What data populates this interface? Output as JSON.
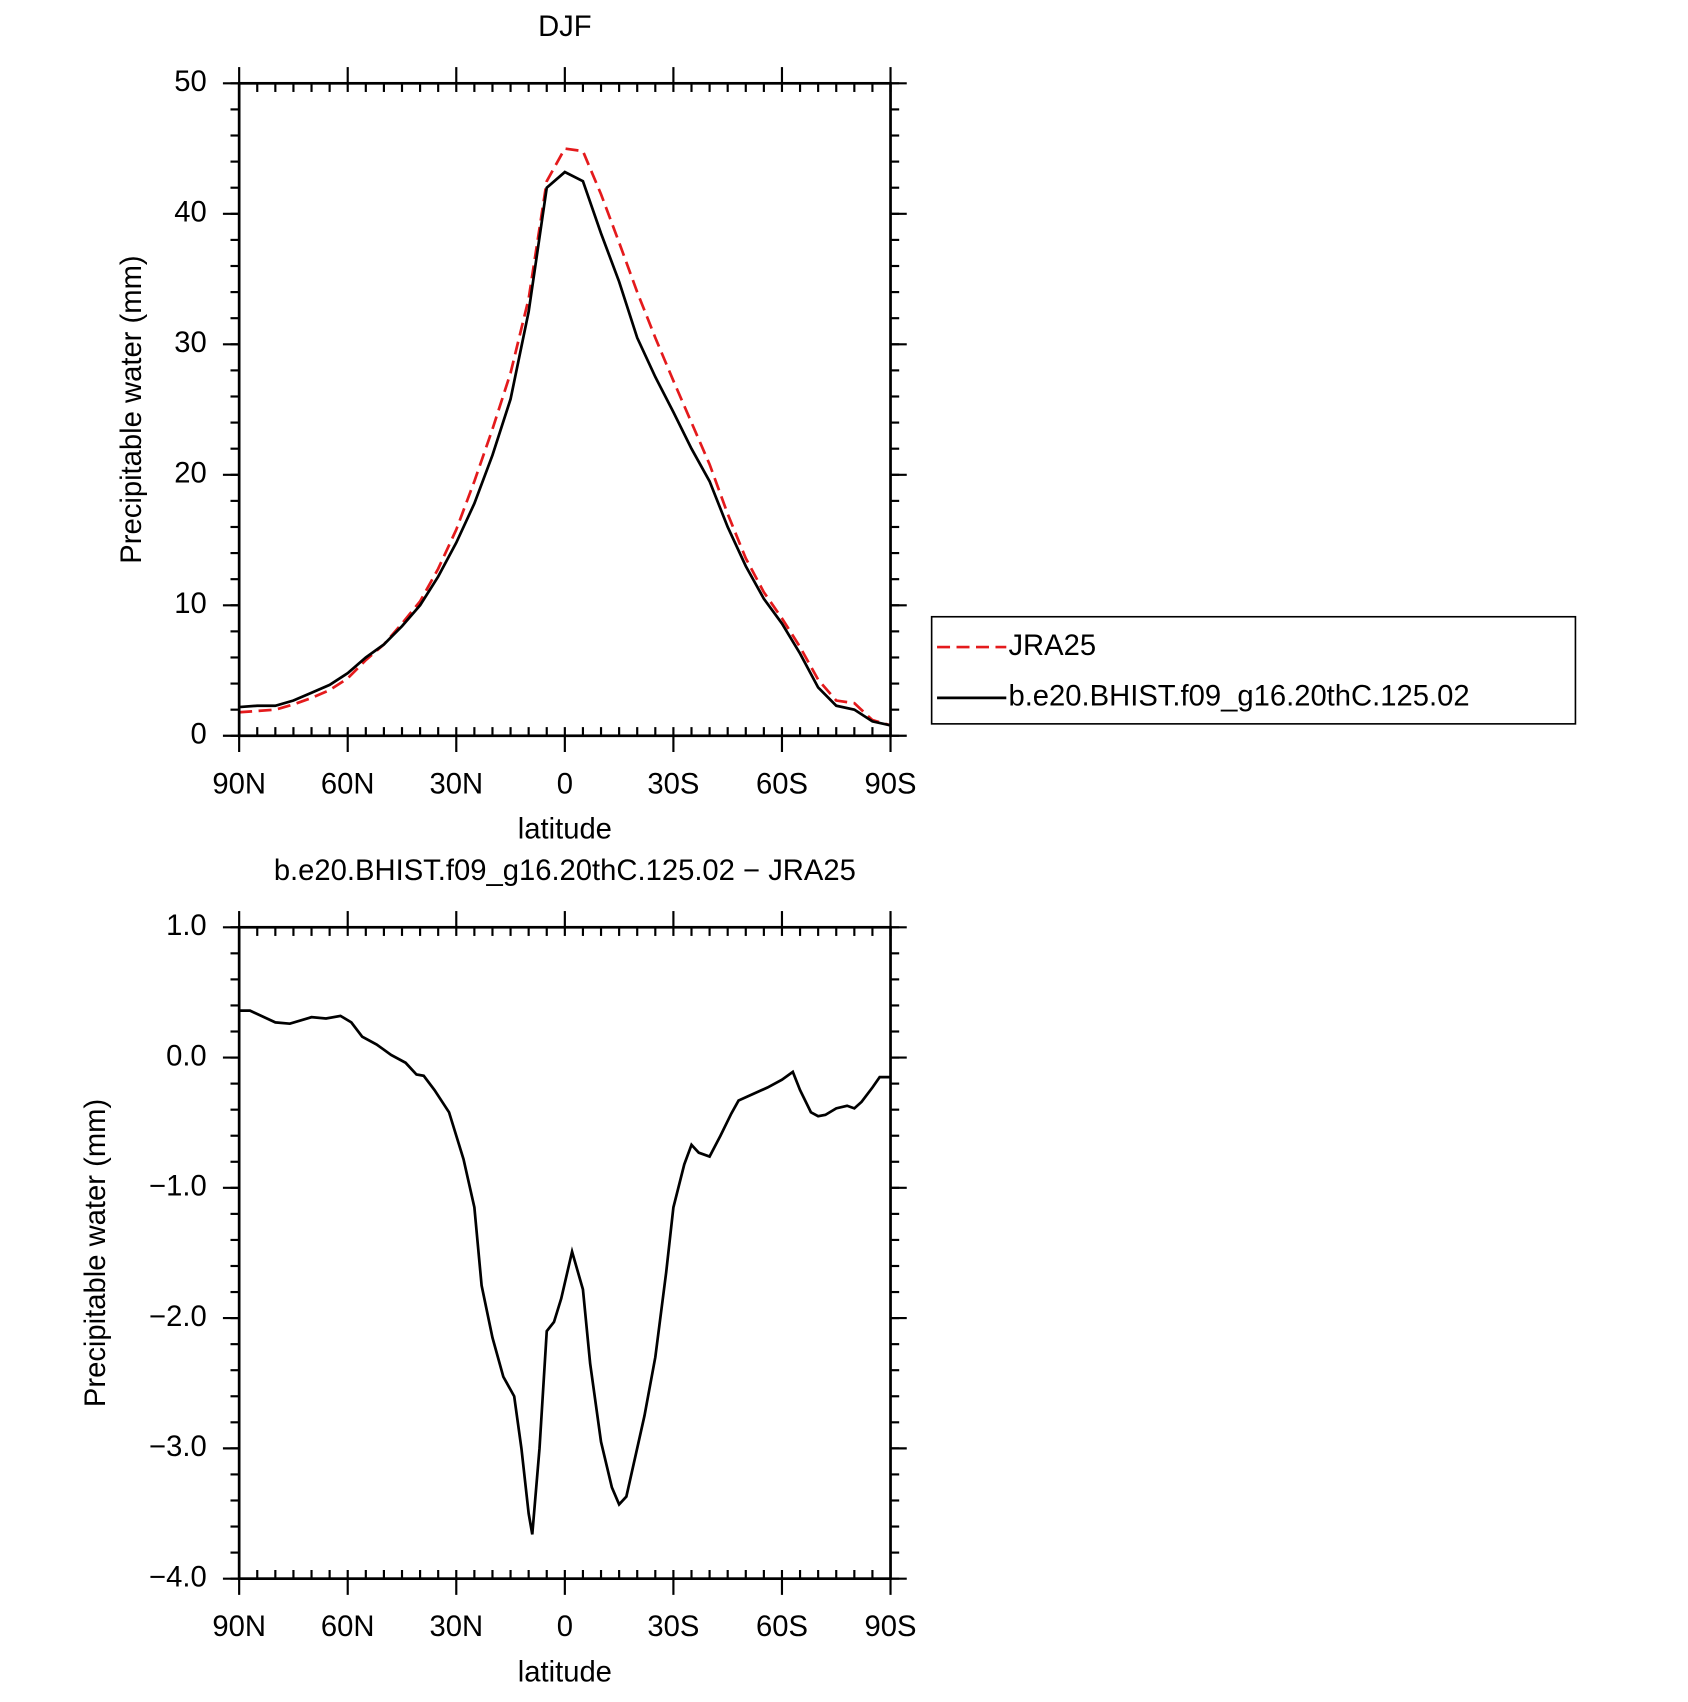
{
  "chart_data": [
    {
      "type": "line",
      "title": "DJF",
      "xlabel": "latitude",
      "ylabel": "Precipitable water (mm)",
      "legend": "right",
      "x": [
        90,
        85,
        80,
        75,
        70,
        65,
        60,
        55,
        50,
        45,
        40,
        35,
        30,
        25,
        20,
        15,
        10,
        5,
        0,
        -5,
        -10,
        -15,
        -20,
        -25,
        -30,
        -35,
        -40,
        -45,
        -50,
        -55,
        -60,
        -65,
        -70,
        -75,
        -80,
        -85,
        -90
      ],
      "series": [
        {
          "name": "JRA25",
          "color": "#e41a1c",
          "dash": true,
          "values": [
            1.8,
            1.9,
            2.0,
            2.4,
            2.9,
            3.5,
            4.4,
            5.8,
            7.0,
            8.6,
            10.3,
            12.8,
            15.8,
            19.5,
            23.5,
            27.8,
            33.5,
            42.5,
            45.0,
            44.8,
            41.5,
            37.8,
            34.0,
            30.5,
            27.2,
            24.0,
            20.8,
            17.0,
            13.6,
            11.0,
            9.0,
            6.8,
            4.3,
            2.7,
            2.5,
            1.2,
            0.8
          ]
        },
        {
          "name": "b.e20.BHIST.f09_g16.20thC.125.02",
          "color": "#000000",
          "dash": false,
          "values": [
            2.2,
            2.3,
            2.3,
            2.7,
            3.3,
            3.9,
            4.8,
            6.0,
            7.0,
            8.4,
            10.0,
            12.2,
            14.8,
            17.8,
            21.5,
            25.8,
            32.5,
            42.0,
            43.2,
            42.5,
            38.5,
            34.8,
            30.5,
            27.5,
            24.8,
            22.0,
            19.5,
            16.0,
            13.0,
            10.5,
            8.6,
            6.3,
            3.7,
            2.3,
            2.0,
            1.1,
            0.8
          ]
        }
      ],
      "xlim": [
        90,
        -90
      ],
      "ylim": [
        0,
        50
      ],
      "xticks": [
        {
          "value": 90,
          "label": "90N"
        },
        {
          "value": 60,
          "label": "60N"
        },
        {
          "value": 30,
          "label": "30N"
        },
        0,
        {
          "value": -30,
          "label": "30S"
        },
        {
          "value": -60,
          "label": "60S"
        },
        {
          "value": -90,
          "label": "90S"
        }
      ],
      "yticks": [
        0,
        10,
        20,
        30,
        40,
        50
      ]
    },
    {
      "type": "line",
      "title": "b.e20.BHIST.f09_g16.20thC.125.02 − JRA25",
      "xlabel": "latitude",
      "ylabel": "Precipitable water (mm)",
      "x": [
        90,
        87,
        80,
        76,
        70,
        66,
        62,
        59,
        56,
        52,
        48,
        44,
        41,
        39,
        36,
        32,
        28,
        25,
        23,
        20,
        17,
        14,
        12,
        10,
        9,
        7,
        5,
        3,
        1,
        -2,
        -5,
        -7,
        -10,
        -13,
        -15,
        -17,
        -22,
        -25,
        -28,
        -30,
        -33,
        -35,
        -37,
        -40,
        -43,
        -46,
        -48,
        -52,
        -56,
        -60,
        -63,
        -65,
        -68,
        -70,
        -72,
        -75,
        -78,
        -80,
        -82,
        -85,
        -87,
        -90
      ],
      "series": [
        {
          "color": "#000000",
          "dash": false,
          "values": [
            0.36,
            0.36,
            0.27,
            0.26,
            0.31,
            0.3,
            0.32,
            0.27,
            0.16,
            0.1,
            0.02,
            -0.04,
            -0.13,
            -0.14,
            -0.25,
            -0.42,
            -0.78,
            -1.15,
            -1.75,
            -2.15,
            -2.45,
            -2.6,
            -3.0,
            -3.5,
            -3.66,
            -3.0,
            -2.1,
            -2.03,
            -1.85,
            -1.49,
            -1.78,
            -2.35,
            -2.95,
            -3.3,
            -3.43,
            -3.37,
            -2.75,
            -2.3,
            -1.65,
            -1.15,
            -0.82,
            -0.67,
            -0.73,
            -0.76,
            -0.6,
            -0.43,
            -0.33,
            -0.28,
            -0.23,
            -0.17,
            -0.11,
            -0.25,
            -0.42,
            -0.45,
            -0.44,
            -0.39,
            -0.37,
            -0.39,
            -0.34,
            -0.23,
            -0.15,
            -0.15
          ]
        }
      ],
      "xlim": [
        90,
        -90
      ],
      "ylim": [
        -4,
        1
      ],
      "xticks": [
        {
          "value": 90,
          "label": "90N"
        },
        {
          "value": 60,
          "label": "60N"
        },
        {
          "value": 30,
          "label": "30N"
        },
        0,
        {
          "value": -30,
          "label": "30S"
        },
        {
          "value": -60,
          "label": "60S"
        },
        {
          "value": -90,
          "label": "90S"
        }
      ],
      "yticks": [
        {
          "value": -4,
          "label": "−4.0"
        },
        {
          "value": -3,
          "label": "−3.0"
        },
        {
          "value": -2,
          "label": "−2.0"
        },
        {
          "value": -1,
          "label": "−1.0"
        },
        {
          "value": 0,
          "label": "0.0"
        },
        {
          "value": 1,
          "label": "1.0"
        }
      ]
    }
  ]
}
